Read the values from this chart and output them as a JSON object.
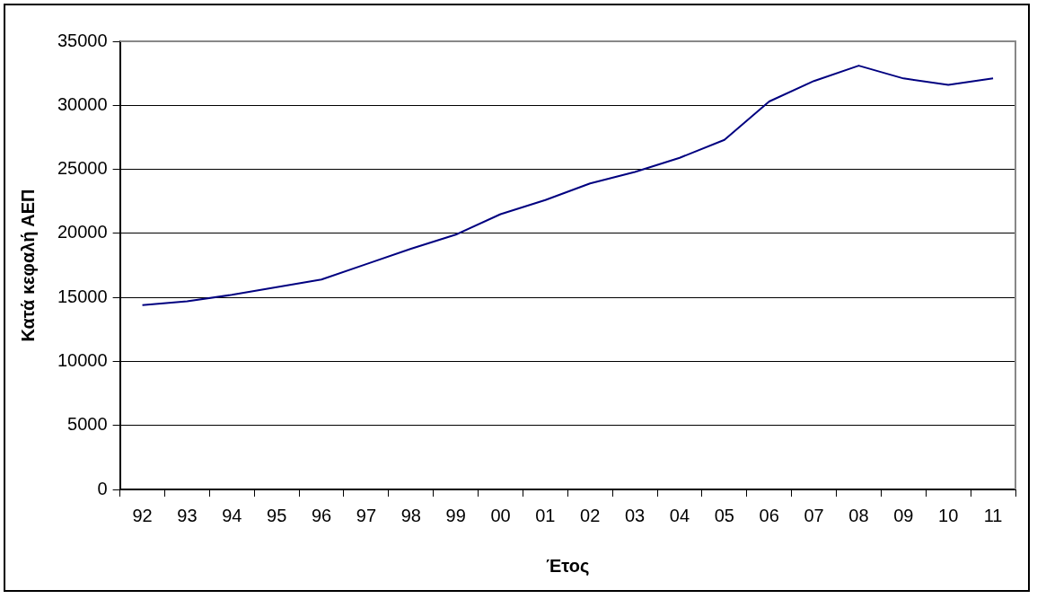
{
  "chart_data": {
    "type": "line",
    "xlabel": "Έτος",
    "ylabel": "Κατά κεφαλή ΑΕΠ",
    "categories": [
      "92",
      "93",
      "94",
      "95",
      "96",
      "97",
      "98",
      "99",
      "00",
      "01",
      "02",
      "03",
      "04",
      "05",
      "06",
      "07",
      "08",
      "09",
      "10",
      "11"
    ],
    "series": [
      {
        "color": "#000080",
        "values": [
          14400,
          14700,
          15200,
          15800,
          16400,
          17600,
          18800,
          19900,
          21500,
          22600,
          23900,
          24800,
          25900,
          27300,
          30300,
          31900,
          33100,
          32100,
          31600,
          32100
        ]
      }
    ],
    "ylim": [
      0,
      35000
    ],
    "yticks": [
      0,
      5000,
      10000,
      15000,
      20000,
      25000,
      30000,
      35000
    ],
    "grid": "y",
    "legend": false,
    "marker": "none",
    "line_style": "solid"
  }
}
